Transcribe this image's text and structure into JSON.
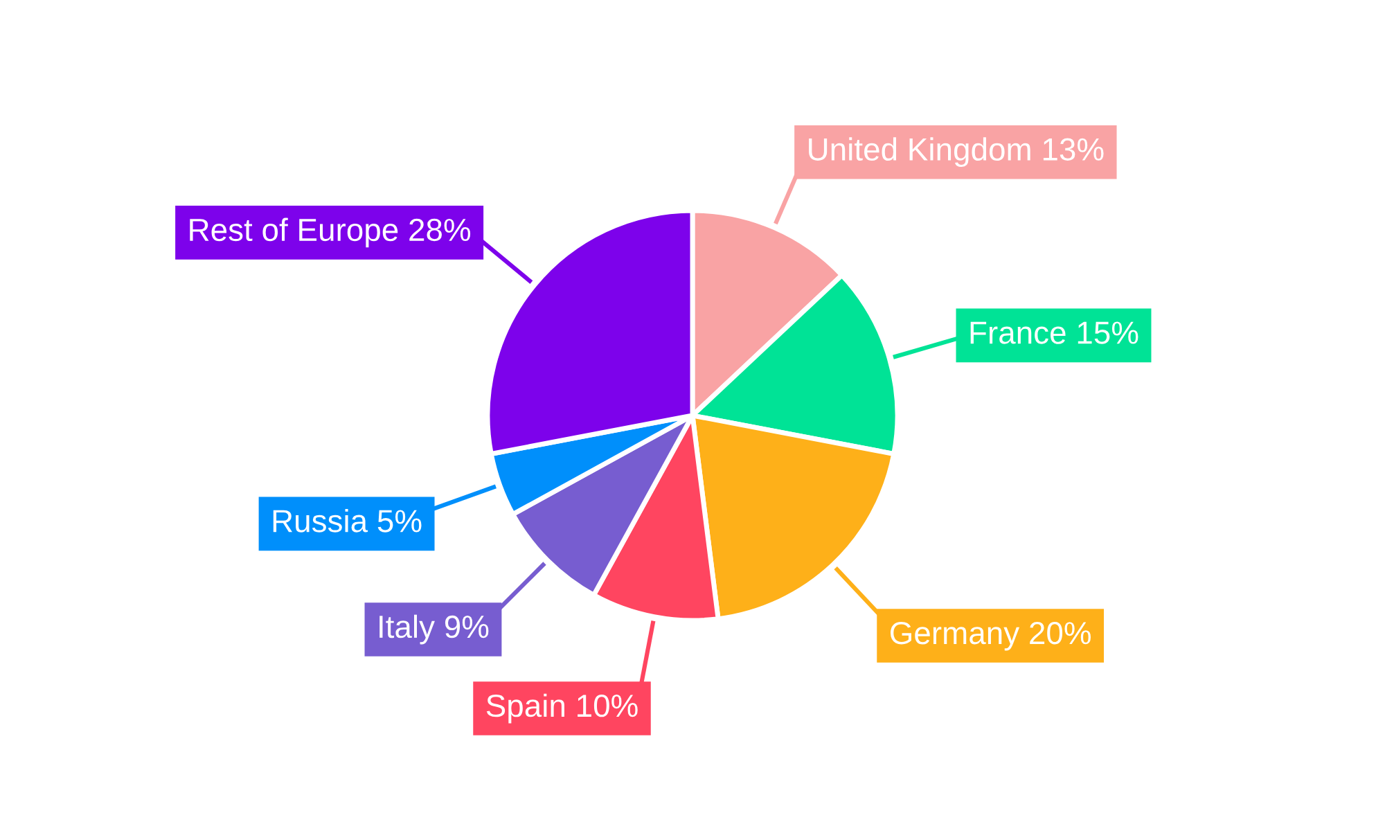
{
  "chart_data": {
    "type": "pie",
    "categories": [
      "United Kingdom",
      "France",
      "Germany",
      "Spain",
      "Italy",
      "Russia",
      "Rest of Europe"
    ],
    "values": [
      13,
      15,
      20,
      10,
      9,
      5,
      28
    ],
    "colors": [
      "#f9a3a4",
      "#00e396",
      "#feb019",
      "#ff4560",
      "#775dd0",
      "#008ffb",
      "#7d02eb"
    ],
    "value_labels": [
      "13%",
      "15%",
      "20%",
      "10%",
      "9%",
      "5%",
      "28%"
    ]
  }
}
